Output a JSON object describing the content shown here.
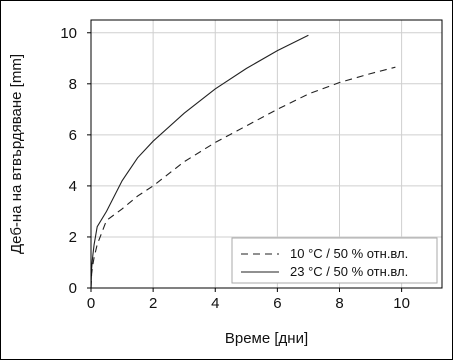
{
  "chart_data": {
    "type": "line",
    "xlabel": "Време [дни]",
    "ylabel": "Деб-на на втвърдяване [mm]",
    "xlim": [
      0,
      11.3
    ],
    "ylim": [
      0,
      10.5
    ],
    "xticks": [
      0,
      2,
      4,
      6,
      8,
      10
    ],
    "yticks": [
      0,
      2,
      4,
      6,
      8,
      10
    ],
    "grid": true,
    "legend_position": "bottom-right",
    "series": [
      {
        "name": "10 °C / 50 % отн.вл.",
        "style": "dashed",
        "color": "#222222",
        "x": [
          0,
          0.02,
          0.05,
          0.1,
          0.2,
          0.5,
          1,
          1.5,
          2,
          3,
          4,
          5,
          6,
          7,
          8,
          9,
          9.8
        ],
        "y": [
          0,
          0.55,
          0.86,
          1.2,
          1.7,
          2.65,
          3.1,
          3.6,
          4.0,
          4.95,
          5.7,
          6.35,
          7.0,
          7.6,
          8.05,
          8.4,
          8.65
        ]
      },
      {
        "name": "23 °C / 50 % отн.вл.",
        "style": "solid",
        "color": "#222222",
        "x": [
          0,
          0.02,
          0.05,
          0.1,
          0.2,
          0.5,
          1,
          1.5,
          2,
          3,
          4,
          5,
          6,
          7
        ],
        "y": [
          0,
          0.75,
          1.2,
          1.7,
          2.4,
          3.0,
          4.2,
          5.1,
          5.75,
          6.85,
          7.8,
          8.6,
          9.3,
          9.9
        ]
      }
    ]
  }
}
